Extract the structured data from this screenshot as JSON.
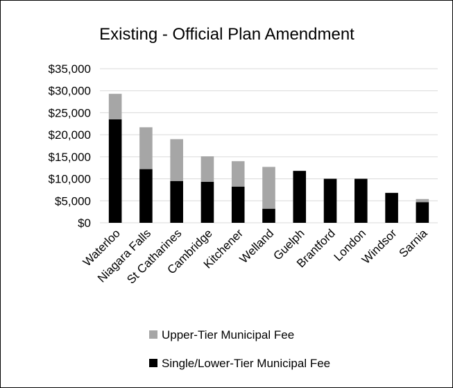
{
  "chart_data": {
    "type": "bar",
    "stacked": true,
    "title": "Existing - Official Plan Amendment",
    "xlabel": "",
    "ylabel": "",
    "ylim": [
      0,
      35000
    ],
    "yticks": [
      "$0",
      "$5,000",
      "$10,000",
      "$15,000",
      "$20,000",
      "$25,000",
      "$30,000",
      "$35,000"
    ],
    "categories": [
      "Waterloo",
      "Niagara Falls",
      "St Catharines",
      "Cambridge",
      "Kitchener",
      "Welland",
      "Guelph",
      "Brantford",
      "London",
      "Windsor",
      "Sarnia"
    ],
    "series": [
      {
        "name": "Single/Lower-Tier Municipal Fee",
        "color": "#000000",
        "values": [
          23500,
          12200,
          9500,
          9300,
          8200,
          3200,
          11800,
          10000,
          10000,
          6800,
          4700
        ]
      },
      {
        "name": "Upper-Tier Municipal Fee",
        "color": "#a6a6a6",
        "values": [
          5800,
          9500,
          9500,
          5800,
          5800,
          9500,
          0,
          0,
          0,
          0,
          700
        ]
      }
    ],
    "grid": true,
    "legend_position": "bottom"
  }
}
